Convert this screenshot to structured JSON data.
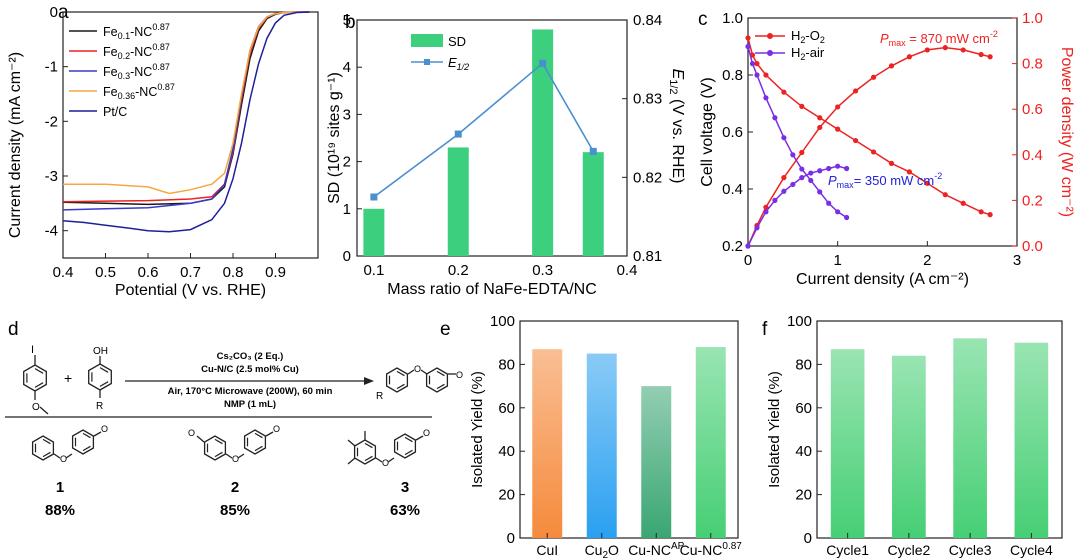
{
  "chart_data": [
    {
      "panel": "a",
      "type": "line",
      "xlabel": "Potential (V vs. RHE)",
      "ylabel": "Current density (mA cm⁻²)",
      "xlim": [
        0.4,
        1.0
      ],
      "ylim": [
        -4.5,
        0
      ],
      "xticks": [
        "0.4",
        "0.5",
        "0.6",
        "0.7",
        "0.8",
        "0.9"
      ],
      "yticks": [
        "0",
        "-1",
        "-2",
        "-3",
        "-4"
      ],
      "series": [
        {
          "name": "Fe0.1-NC0.87",
          "color": "#1a1a1a",
          "x": [
            0.4,
            0.5,
            0.6,
            0.7,
            0.75,
            0.78,
            0.8,
            0.82,
            0.84,
            0.86,
            0.88,
            0.9,
            0.92,
            0.95,
            0.98
          ],
          "y": [
            -3.48,
            -3.5,
            -3.52,
            -3.5,
            -3.42,
            -3.2,
            -2.6,
            -1.7,
            -0.85,
            -0.35,
            -0.12,
            -0.04,
            -0.01,
            0,
            0
          ]
        },
        {
          "name": "Fe0.2-NC0.87",
          "color": "#ee2222",
          "x": [
            0.4,
            0.5,
            0.6,
            0.7,
            0.75,
            0.78,
            0.8,
            0.82,
            0.84,
            0.86,
            0.88,
            0.9,
            0.92,
            0.95,
            0.98
          ],
          "y": [
            -3.47,
            -3.46,
            -3.45,
            -3.42,
            -3.38,
            -3.15,
            -2.55,
            -1.6,
            -0.75,
            -0.3,
            -0.1,
            -0.03,
            -0.01,
            0,
            0
          ]
        },
        {
          "name": "Fe0.3-NC0.87",
          "color": "#3a3acc",
          "x": [
            0.4,
            0.5,
            0.6,
            0.7,
            0.75,
            0.78,
            0.8,
            0.82,
            0.84,
            0.86,
            0.88,
            0.9,
            0.92,
            0.95,
            0.98
          ],
          "y": [
            -3.62,
            -3.6,
            -3.58,
            -3.5,
            -3.42,
            -3.15,
            -2.5,
            -1.55,
            -0.7,
            -0.27,
            -0.09,
            -0.03,
            -0.01,
            0,
            0
          ]
        },
        {
          "name": "Fe0.36-NC0.87",
          "color": "#f5a742",
          "x": [
            0.4,
            0.5,
            0.6,
            0.65,
            0.7,
            0.75,
            0.78,
            0.8,
            0.82,
            0.84,
            0.86,
            0.88,
            0.9,
            0.92,
            0.95,
            0.98
          ],
          "y": [
            -3.15,
            -3.15,
            -3.2,
            -3.32,
            -3.25,
            -3.15,
            -2.95,
            -2.4,
            -1.5,
            -0.7,
            -0.28,
            -0.09,
            -0.03,
            -0.01,
            0,
            0
          ]
        },
        {
          "name": "Pt/C",
          "color": "#1f1f99",
          "x": [
            0.4,
            0.45,
            0.5,
            0.55,
            0.6,
            0.65,
            0.7,
            0.75,
            0.78,
            0.8,
            0.82,
            0.84,
            0.86,
            0.88,
            0.9,
            0.92,
            0.95,
            0.98
          ],
          "y": [
            -3.82,
            -3.85,
            -3.9,
            -3.95,
            -4.0,
            -4.02,
            -3.98,
            -3.8,
            -3.5,
            -3.05,
            -2.4,
            -1.6,
            -0.95,
            -0.48,
            -0.2,
            -0.06,
            -0.01,
            0
          ]
        }
      ],
      "legend": [
        {
          "main": "Fe",
          "sub": "0.1",
          "mid": "-NC",
          "sup": "0.87"
        },
        {
          "main": "Fe",
          "sub": "0.2",
          "mid": "-NC",
          "sup": "0.87"
        },
        {
          "main": "Fe",
          "sub": "0.3",
          "mid": "-NC",
          "sup": "0.87"
        },
        {
          "main": "Fe",
          "sub": "0.36",
          "mid": "-NC",
          "sup": "0.87"
        },
        {
          "main": "Pt/C",
          "sub": "",
          "mid": "",
          "sup": ""
        }
      ]
    },
    {
      "panel": "b",
      "type": "bar+line",
      "xlabel": "Mass ratio of NaFe-EDTA/NC",
      "ylabel_left": "SD (10¹⁹ sites g⁻¹)",
      "ylabel_right": "E1/2 (V vs. RHE)",
      "xlim": [
        0.08,
        0.4
      ],
      "ylim_left": [
        0,
        5
      ],
      "ylim_right": [
        0.81,
        0.84
      ],
      "xticks": [
        "0.1",
        "0.2",
        "0.3",
        "0.4"
      ],
      "yticks_left": [
        "0",
        "1",
        "2",
        "3",
        "4",
        "5"
      ],
      "yticks_right": [
        "0.81",
        "0.82",
        "0.83",
        "0.84"
      ],
      "x": [
        0.1,
        0.2,
        0.3,
        0.36
      ],
      "bars": {
        "name": "SD",
        "color": "#3ccf7e",
        "values": [
          1.0,
          2.3,
          4.8,
          2.2
        ]
      },
      "line": {
        "name": "E1/2",
        "color": "#4a8fd0",
        "values": [
          0.8175,
          0.8255,
          0.8345,
          0.8233
        ]
      }
    },
    {
      "panel": "c",
      "type": "line",
      "xlabel": "Current density (A cm⁻²)",
      "ylabel_left": "Cell voltage (V)",
      "ylabel_right": "Power density (W cm⁻²)",
      "xlim": [
        0,
        3
      ],
      "ylim_left": [
        0.2,
        1.0
      ],
      "ylim_right": [
        0,
        1.0
      ],
      "xticks": [
        "0",
        "1",
        "2",
        "3"
      ],
      "yticks_left": [
        "0.2",
        "0.4",
        "0.6",
        "0.8",
        "1.0"
      ],
      "yticks_right": [
        "0.0",
        "0.2",
        "0.4",
        "0.6",
        "0.8",
        "1.0"
      ],
      "series": [
        {
          "name": "H2-O2",
          "color": "#ee2222",
          "voltage": {
            "x": [
              0,
              0.05,
              0.1,
              0.2,
              0.4,
              0.6,
              0.8,
              1.0,
              1.2,
              1.4,
              1.6,
              1.8,
              2.0,
              2.2,
              2.4,
              2.6,
              2.7
            ],
            "y": [
              0.93,
              0.87,
              0.84,
              0.8,
              0.74,
              0.69,
              0.65,
              0.61,
              0.57,
              0.53,
              0.49,
              0.46,
              0.42,
              0.38,
              0.35,
              0.32,
              0.31
            ]
          },
          "power": {
            "x": [
              0,
              0.1,
              0.2,
              0.4,
              0.6,
              0.8,
              1.0,
              1.2,
              1.4,
              1.6,
              1.8,
              2.0,
              2.2,
              2.4,
              2.6,
              2.7
            ],
            "y": [
              0,
              0.09,
              0.17,
              0.3,
              0.41,
              0.52,
              0.61,
              0.68,
              0.74,
              0.79,
              0.83,
              0.86,
              0.87,
              0.86,
              0.84,
              0.83
            ]
          }
        },
        {
          "name": "H2-air",
          "color": "#7b2ee6",
          "voltage": {
            "x": [
              0,
              0.05,
              0.1,
              0.2,
              0.3,
              0.4,
              0.5,
              0.6,
              0.7,
              0.8,
              0.9,
              1.0,
              1.1
            ],
            "y": [
              0.9,
              0.84,
              0.8,
              0.72,
              0.65,
              0.58,
              0.52,
              0.47,
              0.43,
              0.39,
              0.35,
              0.32,
              0.3
            ]
          },
          "power": {
            "x": [
              0,
              0.1,
              0.2,
              0.3,
              0.4,
              0.5,
              0.6,
              0.7,
              0.8,
              0.9,
              1.0,
              1.1
            ],
            "y": [
              0,
              0.08,
              0.15,
              0.2,
              0.24,
              0.27,
              0.3,
              0.32,
              0.33,
              0.34,
              0.35,
              0.34
            ]
          }
        }
      ],
      "annotations": [
        {
          "label": "P",
          "sub": "max",
          "text": " = 870 mW cm",
          "sup": "-2",
          "color": "#ee2222"
        },
        {
          "label": "P",
          "sub": "max",
          "text": "= 350 mW cm",
          "sup": "-2",
          "color": "#2222dd"
        }
      ]
    },
    {
      "panel": "e",
      "type": "bar",
      "ylabel": "Isolated Yield (%)",
      "ylim": [
        0,
        100
      ],
      "yticks": [
        "0",
        "20",
        "40",
        "60",
        "80",
        "100"
      ],
      "categories": [
        {
          "main": "CuI",
          "sub": "",
          "sup": ""
        },
        {
          "main": "Cu",
          "sub": "2",
          "sup": "",
          "tail": "O"
        },
        {
          "main": "Cu-NC",
          "sub": "",
          "sup": "AP"
        },
        {
          "main": "Cu-NC",
          "sub": "",
          "sup": "0.87"
        }
      ],
      "values": [
        87,
        85,
        70,
        88
      ],
      "colors": [
        "#f58a3c",
        "#2aa0f0",
        "#3aa673",
        "#46cf74"
      ]
    },
    {
      "panel": "f",
      "type": "bar",
      "ylabel": "Isolated Yield (%)",
      "ylim": [
        0,
        100
      ],
      "yticks": [
        "0",
        "20",
        "40",
        "60",
        "80",
        "100"
      ],
      "categories": [
        "Cycle1",
        "Cycle2",
        "Cycle3",
        "Cycle4"
      ],
      "values": [
        87,
        84,
        92,
        90
      ],
      "colors": [
        "#46cf74",
        "#46cf74",
        "#46cf74",
        "#46cf74"
      ]
    }
  ],
  "scheme_d": {
    "panel": "d",
    "conditions": [
      "Cs₂CO₃ (2 Eq.)",
      "Cu-N/C (2.5 mol% Cu)",
      "Air, 170°C Microwave (200W), 60 min",
      "NMP (1 mL)"
    ],
    "substituent_label": "R",
    "reagent_labels": [
      "I",
      "OH",
      "+"
    ],
    "products": [
      {
        "number": "1",
        "yield": "88%"
      },
      {
        "number": "2",
        "yield": "85%"
      },
      {
        "number": "3",
        "yield": "63%"
      }
    ]
  },
  "panel_labels": [
    "a",
    "b",
    "c",
    "d",
    "e",
    "f"
  ]
}
